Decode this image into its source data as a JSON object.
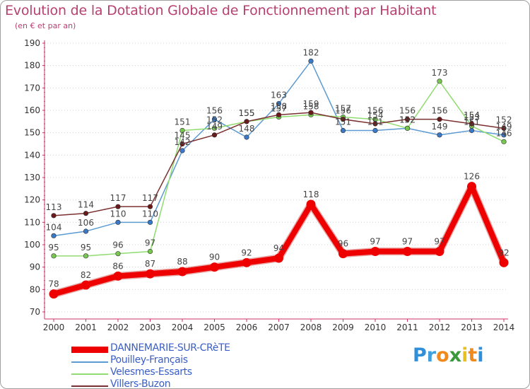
{
  "title": "Evolution de la Dotation Globale de Fonctionnement par Habitant",
  "subtitle": "(en € et par an)",
  "logo": {
    "letters": [
      "P",
      "r",
      "o",
      "x",
      "i",
      "t",
      "i"
    ],
    "colors": [
      "#2f8fd8",
      "#3fa0e0",
      "#f08a1c",
      "#3a9a3a",
      "#e8c020",
      "#f08a1c",
      "#2f8fd8"
    ]
  },
  "chart_data": {
    "type": "line",
    "title": "Evolution de la Dotation Globale de Fonctionnement par Habitant",
    "subtitle": "(en € et par an)",
    "xlabel": "",
    "ylabel": "",
    "x": [
      "2000",
      "2001",
      "2002",
      "2003",
      "2004",
      "2005",
      "2006",
      "2007",
      "2008",
      "2009",
      "2010",
      "2011",
      "2012",
      "2013",
      "2014"
    ],
    "ylim": [
      70,
      190
    ],
    "yticks": [
      70,
      80,
      90,
      100,
      110,
      120,
      130,
      140,
      150,
      160,
      170,
      180,
      190
    ],
    "grid": "horizontal dotted",
    "series": [
      {
        "name": "DANNEMARIE-SUR-CRèTE",
        "color": "#ee0000",
        "marker": "#ee0000",
        "thick": true,
        "values": [
          78,
          82,
          86,
          87,
          88,
          90,
          92,
          94,
          118,
          96,
          97,
          97,
          97,
          126,
          92
        ]
      },
      {
        "name": "Pouilley-Français",
        "color": "#5c9ad2",
        "marker": "#3a78c8",
        "thick": false,
        "values": [
          104,
          106,
          110,
          110,
          142,
          156,
          148,
          163,
          182,
          151,
          151,
          152,
          149,
          151,
          149
        ]
      },
      {
        "name": "Velesmes-Essarts",
        "color": "#90dc70",
        "marker": "#78c850",
        "thick": false,
        "values": [
          95,
          95,
          96,
          97,
          151,
          152,
          155,
          157,
          158,
          157,
          156,
          152,
          173,
          153,
          146
        ]
      },
      {
        "name": "Villers-Buzon",
        "color": "#7a3030",
        "marker": "#6a1a1a",
        "thick": false,
        "values": [
          113,
          114,
          117,
          117,
          145,
          149,
          155,
          158,
          159,
          156,
          154,
          156,
          156,
          154,
          152
        ]
      }
    ]
  }
}
